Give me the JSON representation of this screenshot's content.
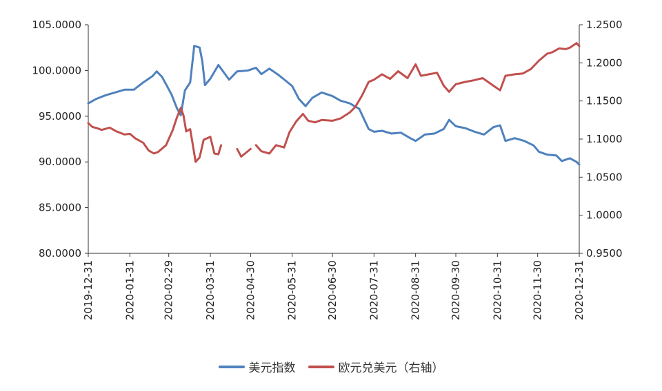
{
  "chart_data": {
    "type": "line",
    "x_start": "2019-12-31",
    "x_end": "2020-12-31",
    "x_ticks": [
      "2019-12-31",
      "2020-01-31",
      "2020-02-29",
      "2020-03-31",
      "2020-04-30",
      "2020-05-31",
      "2020-06-30",
      "2020-07-31",
      "2020-08-31",
      "2020-09-30",
      "2020-10-31",
      "2020-11-30",
      "2020-12-31"
    ],
    "y_left": {
      "lim": [
        80,
        105
      ],
      "ticks": [
        "80.0000",
        "85.0000",
        "90.0000",
        "95.0000",
        "100.0000",
        "105.0000"
      ]
    },
    "y_right": {
      "lim": [
        0.95,
        1.25
      ],
      "ticks": [
        "0.9500",
        "1.0000",
        "1.0500",
        "1.1000",
        "1.1500",
        "1.2000",
        "1.2500"
      ]
    },
    "grid": false,
    "legend_position": "bottom",
    "series": [
      {
        "name": "美元指数",
        "axis": "left",
        "color": "#4f81bd",
        "points": [
          [
            "2019-12-31",
            96.4
          ],
          [
            "2020-01-06",
            96.9
          ],
          [
            "2020-01-13",
            97.3
          ],
          [
            "2020-01-20",
            97.6
          ],
          [
            "2020-01-27",
            97.9
          ],
          [
            "2020-02-03",
            97.9
          ],
          [
            "2020-02-10",
            98.7
          ],
          [
            "2020-02-17",
            99.4
          ],
          [
            "2020-02-20",
            99.9
          ],
          [
            "2020-02-24",
            99.3
          ],
          [
            "2020-03-02",
            97.4
          ],
          [
            "2020-03-06",
            95.9
          ],
          [
            "2020-03-09",
            95.1
          ],
          [
            "2020-03-12",
            97.8
          ],
          [
            "2020-03-16",
            98.7
          ],
          [
            "2020-03-19",
            102.7
          ],
          [
            "2020-03-23",
            102.5
          ],
          [
            "2020-03-25",
            101.0
          ],
          [
            "2020-03-27",
            98.4
          ],
          [
            "2020-03-31",
            99.1
          ],
          [
            "2020-04-06",
            100.6
          ],
          [
            "2020-04-14",
            99.0
          ],
          [
            "2020-04-20",
            99.9
          ],
          [
            "2020-04-28",
            100.0
          ],
          [
            "2020-05-04",
            100.3
          ],
          [
            "2020-05-08",
            99.6
          ],
          [
            "2020-05-14",
            100.2
          ],
          [
            "2020-05-20",
            99.6
          ],
          [
            "2020-05-26",
            98.9
          ],
          [
            "2020-05-31",
            98.3
          ],
          [
            "2020-06-05",
            96.9
          ],
          [
            "2020-06-10",
            96.1
          ],
          [
            "2020-06-15",
            97.0
          ],
          [
            "2020-06-22",
            97.6
          ],
          [
            "2020-06-30",
            97.2
          ],
          [
            "2020-07-06",
            96.7
          ],
          [
            "2020-07-13",
            96.4
          ],
          [
            "2020-07-20",
            95.8
          ],
          [
            "2020-07-27",
            93.6
          ],
          [
            "2020-07-31",
            93.3
          ],
          [
            "2020-08-06",
            93.4
          ],
          [
            "2020-08-13",
            93.1
          ],
          [
            "2020-08-20",
            93.2
          ],
          [
            "2020-08-27",
            92.6
          ],
          [
            "2020-08-31",
            92.3
          ],
          [
            "2020-09-07",
            93.0
          ],
          [
            "2020-09-14",
            93.1
          ],
          [
            "2020-09-21",
            93.6
          ],
          [
            "2020-09-25",
            94.6
          ],
          [
            "2020-09-30",
            93.9
          ],
          [
            "2020-10-07",
            93.7
          ],
          [
            "2020-10-14",
            93.3
          ],
          [
            "2020-10-21",
            93.0
          ],
          [
            "2020-10-28",
            93.8
          ],
          [
            "2020-11-02",
            94.0
          ],
          [
            "2020-11-06",
            92.3
          ],
          [
            "2020-11-13",
            92.6
          ],
          [
            "2020-11-20",
            92.3
          ],
          [
            "2020-11-27",
            91.8
          ],
          [
            "2020-12-01",
            91.1
          ],
          [
            "2020-12-07",
            90.8
          ],
          [
            "2020-12-14",
            90.7
          ],
          [
            "2020-12-18",
            90.1
          ],
          [
            "2020-12-24",
            90.4
          ],
          [
            "2020-12-29",
            90.0
          ],
          [
            "2020-12-31",
            89.7
          ]
        ]
      },
      {
        "name": "欧元兑美元（右轴）",
        "axis": "right",
        "color": "#c0504d",
        "segments": [
          [
            [
              "2019-12-31",
              1.121
            ],
            [
              "2020-01-03",
              1.116
            ],
            [
              "2020-01-07",
              1.114
            ],
            [
              "2020-01-10",
              1.112
            ],
            [
              "2020-01-16",
              1.115
            ],
            [
              "2020-01-21",
              1.11
            ],
            [
              "2020-01-27",
              1.106
            ],
            [
              "2020-01-31",
              1.107
            ],
            [
              "2020-02-04",
              1.101
            ],
            [
              "2020-02-10",
              1.095
            ],
            [
              "2020-02-14",
              1.085
            ],
            [
              "2020-02-18",
              1.081
            ],
            [
              "2020-02-21",
              1.083
            ],
            [
              "2020-02-27",
              1.092
            ],
            [
              "2020-03-03",
              1.112
            ],
            [
              "2020-03-06",
              1.128
            ],
            [
              "2020-03-09",
              1.141
            ],
            [
              "2020-03-11",
              1.131
            ],
            [
              "2020-03-13",
              1.11
            ],
            [
              "2020-03-16",
              1.113
            ],
            [
              "2020-03-19",
              1.081
            ],
            [
              "2020-03-20",
              1.07
            ],
            [
              "2020-03-23",
              1.076
            ],
            [
              "2020-03-26",
              1.099
            ],
            [
              "2020-03-31",
              1.103
            ],
            [
              "2020-04-03",
              1.081
            ],
            [
              "2020-04-06",
              1.08
            ],
            [
              "2020-04-08",
              1.092
            ]
          ],
          [
            [
              "2020-04-20",
              1.087
            ],
            [
              "2020-04-23",
              1.077
            ],
            [
              "2020-04-30",
              1.087
            ]
          ],
          [
            [
              "2020-05-04",
              1.092
            ],
            [
              "2020-05-08",
              1.084
            ],
            [
              "2020-05-14",
              1.081
            ],
            [
              "2020-05-19",
              1.092
            ],
            [
              "2020-05-25",
              1.089
            ],
            [
              "2020-05-29",
              1.109
            ],
            [
              "2020-06-03",
              1.123
            ],
            [
              "2020-06-08",
              1.133
            ],
            [
              "2020-06-12",
              1.124
            ],
            [
              "2020-06-17",
              1.122
            ],
            [
              "2020-06-22",
              1.125
            ],
            [
              "2020-06-30",
              1.124
            ],
            [
              "2020-07-06",
              1.127
            ],
            [
              "2020-07-13",
              1.135
            ],
            [
              "2020-07-17",
              1.142
            ],
            [
              "2020-07-22",
              1.157
            ],
            [
              "2020-07-27",
              1.175
            ],
            [
              "2020-07-31",
              1.178
            ],
            [
              "2020-08-06",
              1.185
            ],
            [
              "2020-08-12",
              1.179
            ],
            [
              "2020-08-18",
              1.189
            ],
            [
              "2020-08-25",
              1.18
            ],
            [
              "2020-08-31",
              1.198
            ],
            [
              "2020-09-04",
              1.183
            ],
            [
              "2020-09-10",
              1.185
            ],
            [
              "2020-09-16",
              1.187
            ],
            [
              "2020-09-21",
              1.17
            ],
            [
              "2020-09-25",
              1.162
            ],
            [
              "2020-09-30",
              1.172
            ],
            [
              "2020-10-07",
              1.175
            ],
            [
              "2020-10-13",
              1.177
            ],
            [
              "2020-10-20",
              1.18
            ],
            [
              "2020-10-28",
              1.17
            ],
            [
              "2020-11-02",
              1.164
            ],
            [
              "2020-11-06",
              1.183
            ],
            [
              "2020-11-13",
              1.185
            ],
            [
              "2020-11-19",
              1.186
            ],
            [
              "2020-11-25",
              1.192
            ],
            [
              "2020-12-01",
              1.203
            ],
            [
              "2020-12-07",
              1.212
            ],
            [
              "2020-12-11",
              1.214
            ],
            [
              "2020-12-16",
              1.219
            ],
            [
              "2020-12-21",
              1.218
            ],
            [
              "2020-12-24",
              1.22
            ],
            [
              "2020-12-29",
              1.226
            ],
            [
              "2020-12-31",
              1.222
            ]
          ]
        ]
      }
    ]
  }
}
